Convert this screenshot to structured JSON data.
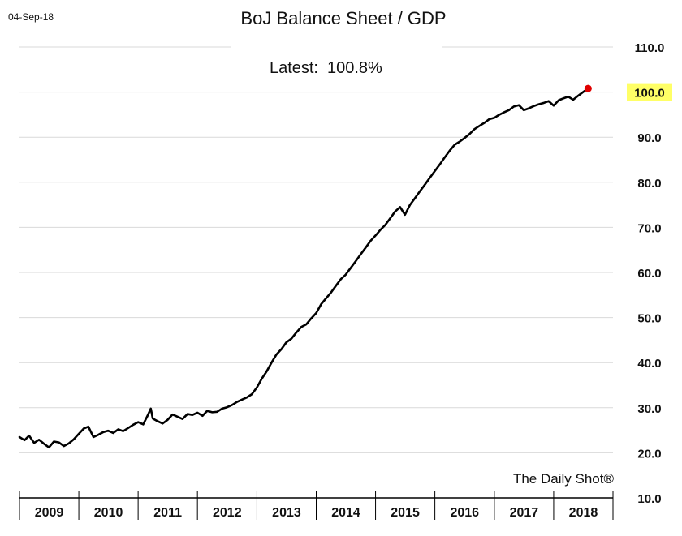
{
  "date_stamp": "04-Sep-18",
  "annotation": {
    "label": "Latest:",
    "value": "100.8%"
  },
  "watermark": "The Daily Shot®",
  "colors": {
    "line": "#000000",
    "latest_marker": "#e00000",
    "highlight": "#ffff66",
    "grid": "#d9d9d9"
  },
  "chart_data": {
    "type": "line",
    "title": "BoJ Balance Sheet / GDP",
    "xlabel": "",
    "ylabel": "",
    "ylim": [
      10,
      110
    ],
    "yticks": [
      10.0,
      20.0,
      30.0,
      40.0,
      50.0,
      60.0,
      70.0,
      80.0,
      90.0,
      100.0,
      110.0
    ],
    "ytick_labels": [
      "10.0",
      "20.0",
      "30.0",
      "40.0",
      "50.0",
      "60.0",
      "70.0",
      "80.0",
      "90.0",
      "100.0",
      "110.0"
    ],
    "highlighted_tick": "100.0",
    "xlim": [
      "2009-01-01",
      "2019-01-01"
    ],
    "x_category_labels": [
      "2009",
      "2010",
      "2011",
      "2012",
      "2013",
      "2014",
      "2015",
      "2016",
      "2017",
      "2018"
    ],
    "grid": "horizontal",
    "y_axis_side": "right",
    "series": [
      {
        "x": [
          "2009-01-01",
          "2009-02-01",
          "2009-03-01",
          "2009-04-01",
          "2009-05-01",
          "2009-06-01",
          "2009-07-01",
          "2009-08-01",
          "2009-09-01",
          "2009-10-01",
          "2009-11-01",
          "2009-12-01",
          "2010-01-01",
          "2010-02-01",
          "2010-03-01",
          "2010-04-01",
          "2010-05-01",
          "2010-06-01",
          "2010-07-01",
          "2010-08-01",
          "2010-09-01",
          "2010-10-01",
          "2010-11-01",
          "2010-12-01",
          "2011-01-01",
          "2011-02-01",
          "2011-03-01",
          "2011-03-20",
          "2011-04-01",
          "2011-05-01",
          "2011-06-01",
          "2011-07-01",
          "2011-08-01",
          "2011-09-01",
          "2011-10-01",
          "2011-11-01",
          "2011-12-01",
          "2012-01-01",
          "2012-02-01",
          "2012-03-01",
          "2012-04-01",
          "2012-05-01",
          "2012-06-01",
          "2012-07-01",
          "2012-08-01",
          "2012-09-01",
          "2012-10-01",
          "2012-11-01",
          "2012-12-01",
          "2013-01-01",
          "2013-02-01",
          "2013-03-01",
          "2013-04-01",
          "2013-05-01",
          "2013-06-01",
          "2013-07-01",
          "2013-08-01",
          "2013-09-01",
          "2013-10-01",
          "2013-11-01",
          "2013-12-01",
          "2014-01-01",
          "2014-02-01",
          "2014-03-01",
          "2014-04-01",
          "2014-05-01",
          "2014-06-01",
          "2014-07-01",
          "2014-08-01",
          "2014-09-01",
          "2014-10-01",
          "2014-11-01",
          "2014-12-01",
          "2015-01-01",
          "2015-02-01",
          "2015-03-01",
          "2015-04-01",
          "2015-05-01",
          "2015-06-01",
          "2015-07-01",
          "2015-08-01",
          "2015-09-01",
          "2015-10-01",
          "2015-11-01",
          "2015-12-01",
          "2016-01-01",
          "2016-02-01",
          "2016-03-01",
          "2016-04-01",
          "2016-05-01",
          "2016-06-01",
          "2016-07-01",
          "2016-08-01",
          "2016-09-01",
          "2016-10-01",
          "2016-11-01",
          "2016-12-01",
          "2017-01-01",
          "2017-02-01",
          "2017-03-01",
          "2017-04-01",
          "2017-05-01",
          "2017-06-01",
          "2017-07-01",
          "2017-08-01",
          "2017-09-01",
          "2017-10-01",
          "2017-11-01",
          "2017-12-01",
          "2018-01-01",
          "2018-02-01",
          "2018-03-01",
          "2018-04-01",
          "2018-05-01",
          "2018-06-01",
          "2018-07-01",
          "2018-08-01"
        ],
        "values": [
          23.5,
          22.8,
          23.8,
          22.2,
          22.9,
          22.0,
          21.2,
          22.5,
          22.3,
          21.5,
          22.1,
          23.0,
          24.2,
          25.4,
          25.8,
          23.5,
          24.0,
          24.6,
          24.9,
          24.4,
          25.2,
          24.8,
          25.5,
          26.2,
          26.8,
          26.3,
          28.3,
          29.8,
          27.6,
          27.0,
          26.5,
          27.3,
          28.5,
          28.0,
          27.5,
          28.6,
          28.4,
          28.9,
          28.2,
          29.3,
          29.0,
          29.1,
          29.8,
          30.1,
          30.6,
          31.3,
          31.8,
          32.3,
          33.0,
          34.5,
          36.5,
          38.0,
          40.0,
          41.8,
          43.0,
          44.5,
          45.3,
          46.7,
          47.9,
          48.5,
          49.8,
          51.0,
          53.0,
          54.2,
          55.5,
          57.0,
          58.5,
          59.5,
          61.0,
          62.5,
          64.0,
          65.5,
          67.0,
          68.2,
          69.5,
          70.5,
          72.0,
          73.5,
          74.5,
          72.8,
          75.0,
          76.5,
          78.0,
          79.5,
          81.0,
          82.5,
          84.0,
          85.5,
          87.0,
          88.3,
          89.0,
          89.8,
          90.7,
          91.8,
          92.5,
          93.2,
          94.0,
          94.3,
          95.0,
          95.5,
          96.0,
          96.8,
          97.1,
          96.0,
          96.4,
          96.9,
          97.3,
          97.6,
          98.0,
          97.0,
          98.2,
          98.6,
          99.0,
          98.3,
          99.2,
          100.0,
          100.8
        ]
      }
    ],
    "latest_point": {
      "x": "2018-08-01",
      "y": 100.8
    }
  }
}
